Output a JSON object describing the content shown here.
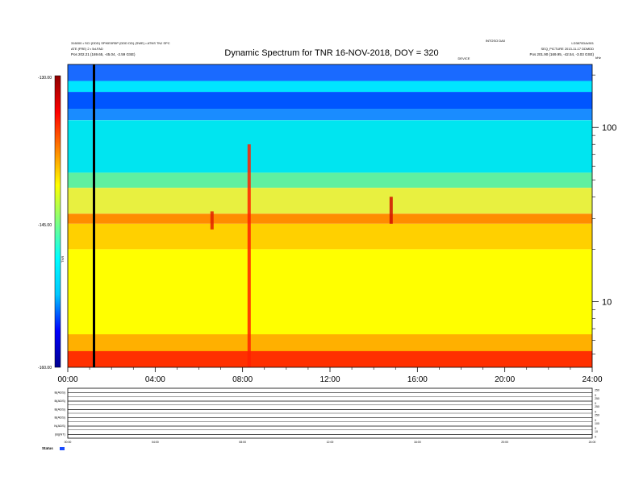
{
  "chart_data": {
    "type": "heatmap",
    "title": "Dynamic Spectrum for TNR 16-NOV-2018, DOY = 320",
    "header": {
      "left_line1": "316000 • SCI (DDD) SPIKE0R5P (DDD DD) (SWE) • ATNS TNJ SPC",
      "left_line2": "ATE (FRE) 2 • 5d-FAD",
      "left_line3": "Pos    202.21 (169.65, -45.04, -2.59 GSE)",
      "right_line1": "LD3870DA•501",
      "right_line2": "SEQ_PICTURE  2013-11-17 DDMDD",
      "right_line3": "Pos    201.90 (169.95, -42.54, -3.03 GSE)",
      "center_a": "INTOSO DA0",
      "center_b": "DEVICE"
    },
    "colorbar": {
      "label": "TNR",
      "range": [
        -160,
        -130
      ],
      "tick_labels": [
        "-130.00",
        "-145.00",
        "-160.00"
      ],
      "colors": [
        "#00008f",
        "#0000ff",
        "#00c8ff",
        "#00ffff",
        "#7fff7f",
        "#ffff00",
        "#ff8000",
        "#ff0000",
        "#8f0000"
      ]
    },
    "x_axis": {
      "range_hours": [
        0,
        24
      ],
      "tick_labels": [
        "00:00",
        "04:00",
        "08:00",
        "12:00",
        "16:00",
        "20:00",
        "24:00"
      ]
    },
    "y_axis": {
      "scale": "log",
      "unit_label": "kHz",
      "tick_values": [
        10,
        100
      ],
      "tick_labels": [
        "10",
        "100"
      ],
      "range": [
        4.2,
        230
      ]
    },
    "bands": [
      {
        "freq": [
          185,
          230
        ],
        "color": "#1a6aff"
      },
      {
        "freq": [
          160,
          185
        ],
        "color": "#00e5ff"
      },
      {
        "freq": [
          128,
          160
        ],
        "color": "#0055ff"
      },
      {
        "freq": [
          110,
          128
        ],
        "color": "#1a8cff"
      },
      {
        "freq": [
          55,
          110
        ],
        "color": "#00e5f0"
      },
      {
        "freq": [
          45,
          55
        ],
        "color": "#5ff0a0"
      },
      {
        "freq": [
          32,
          45
        ],
        "color": "#e8f040"
      },
      {
        "freq": [
          28,
          32
        ],
        "color": "#ff8c00"
      },
      {
        "freq": [
          20,
          28
        ],
        "color": "#ffd000"
      },
      {
        "freq": [
          6.5,
          20
        ],
        "color": "#ffff00"
      },
      {
        "freq": [
          5.2,
          6.5
        ],
        "color": "#ffb000"
      },
      {
        "freq": [
          4.2,
          5.2
        ],
        "color": "#ff3000"
      }
    ],
    "features": [
      {
        "kind": "data_gap_line",
        "time": 1.2,
        "color": "#000000"
      },
      {
        "kind": "burst",
        "time": 8.3,
        "freq_range": [
          4.2,
          80
        ],
        "color": "#ff2000"
      },
      {
        "kind": "burst",
        "time": 14.8,
        "freq_range": [
          28,
          40
        ],
        "color": "#d01000"
      },
      {
        "kind": "burst",
        "time": 6.6,
        "freq_range": [
          26,
          33
        ],
        "color": "#e02000"
      }
    ],
    "subpanels": [
      {
        "label": "B(ADS)",
        "right_ticks": [
          "250",
          "0"
        ]
      },
      {
        "label": "B(ADS)",
        "right_ticks": [
          "250",
          "0"
        ]
      },
      {
        "label": "B(ADS)",
        "right_ticks": [
          "250",
          "0"
        ]
      },
      {
        "label": "B(ADS)",
        "right_ticks": [
          "250",
          "0"
        ]
      },
      {
        "label": "N(ADS)",
        "right_ticks": [
          "100",
          "0"
        ]
      },
      {
        "label": "|B|(NT)",
        "right_ticks": [
          "10",
          "0"
        ]
      }
    ],
    "subpanel_time_labels": [
      "00:00",
      "04:00",
      "08:00",
      "12:00",
      "16:00",
      "20:00",
      "24:00"
    ],
    "status_label": "Status"
  }
}
